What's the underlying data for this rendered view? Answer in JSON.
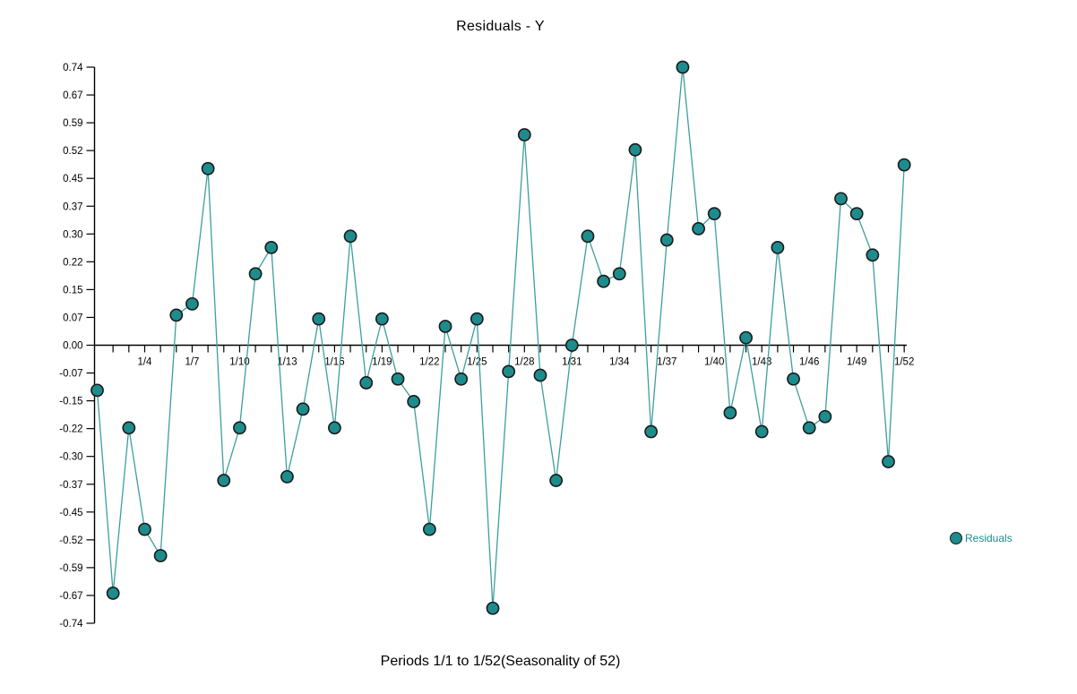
{
  "window": {
    "background": "#ffffff"
  },
  "chart_data": {
    "type": "line",
    "title": "Residuals - Y",
    "caption": "Periods 1/1 to 1/52(Seasonality of 52)",
    "legend": {
      "label": "Residuals",
      "position": "right"
    },
    "grid": false,
    "ylim": [
      -0.74,
      0.74
    ],
    "y_tick_labels": [
      "0.74",
      "0.67",
      "0.59",
      "0.52",
      "0.45",
      "0.37",
      "0.30",
      "0.22",
      "0.15",
      "0.07",
      "0.00",
      "-0.07",
      "-0.15",
      "-0.22",
      "-0.30",
      "-0.37",
      "-0.45",
      "-0.52",
      "-0.59",
      "-0.67",
      "-0.74"
    ],
    "x_tick_periods": [
      4,
      7,
      10,
      13,
      16,
      19,
      22,
      25,
      28,
      31,
      34,
      37,
      40,
      43,
      46,
      49,
      52
    ],
    "categories": [
      "1/1",
      "1/2",
      "1/3",
      "1/4",
      "1/5",
      "1/6",
      "1/7",
      "1/8",
      "1/9",
      "1/10",
      "1/11",
      "1/12",
      "1/13",
      "1/14",
      "1/15",
      "1/16",
      "1/17",
      "1/18",
      "1/19",
      "1/20",
      "1/21",
      "1/22",
      "1/23",
      "1/24",
      "1/25",
      "1/26",
      "1/27",
      "1/28",
      "1/29",
      "1/30",
      "1/31",
      "1/32",
      "1/33",
      "1/34",
      "1/35",
      "1/36",
      "1/37",
      "1/38",
      "1/39",
      "1/40",
      "1/41",
      "1/42",
      "1/43",
      "1/44",
      "1/45",
      "1/46",
      "1/47",
      "1/48",
      "1/49",
      "1/50",
      "1/51",
      "1/52"
    ],
    "series": [
      {
        "name": "Residuals",
        "values": [
          -0.12,
          -0.66,
          -0.22,
          -0.49,
          -0.56,
          0.08,
          0.11,
          0.47,
          -0.36,
          -0.22,
          0.19,
          0.26,
          -0.35,
          -0.17,
          0.07,
          -0.22,
          0.29,
          -0.1,
          0.07,
          -0.09,
          -0.15,
          -0.49,
          0.05,
          -0.09,
          0.07,
          -0.7,
          -0.07,
          0.56,
          -0.08,
          -0.36,
          0.0,
          0.29,
          0.17,
          0.19,
          0.52,
          -0.23,
          0.28,
          0.74,
          0.31,
          0.35,
          -0.18,
          0.02,
          -0.23,
          0.26,
          -0.09,
          -0.22,
          -0.19,
          0.39,
          0.35,
          0.24,
          -0.31,
          0.48
        ]
      }
    ],
    "colors": {
      "marker_fill": "#1e8c8c",
      "marker_stroke": "#1a1a1a",
      "line": "#3d9e9e",
      "axis": "#000000",
      "tick_label": "#000000",
      "legend_text": "#1e8c8c"
    }
  }
}
